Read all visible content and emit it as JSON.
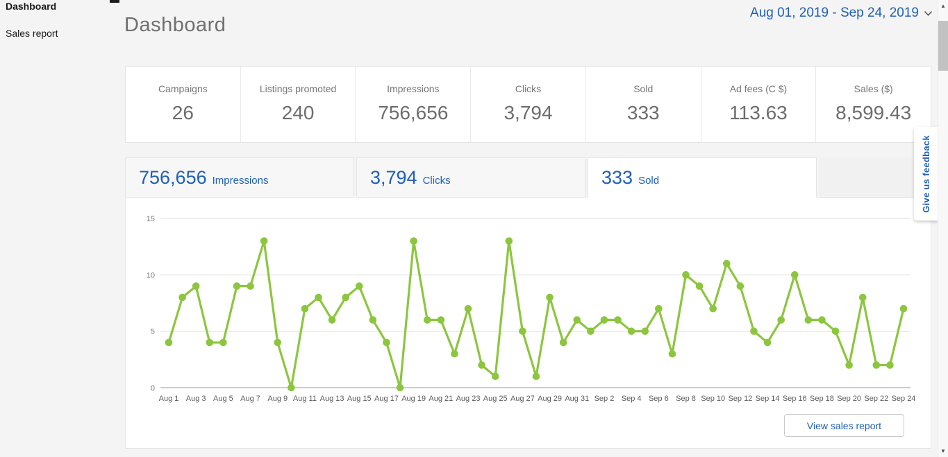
{
  "sidebar": {
    "items": [
      {
        "label": "Dashboard",
        "active": true
      },
      {
        "label": "Sales report",
        "active": false
      }
    ]
  },
  "header": {
    "title": "Dashboard",
    "date_range": "Aug 01, 2019 - Sep 24, 2019"
  },
  "stats": [
    {
      "label": "Campaigns",
      "value": "26"
    },
    {
      "label": "Listings promoted",
      "value": "240"
    },
    {
      "label": "Impressions",
      "value": "756,656"
    },
    {
      "label": "Clicks",
      "value": "3,794"
    },
    {
      "label": "Sold",
      "value": "333"
    },
    {
      "label": "Ad fees (C $)",
      "value": "113.63"
    },
    {
      "label": "Sales ($)",
      "value": "8,599.43"
    }
  ],
  "tabs": [
    {
      "value": "756,656",
      "label": "Impressions",
      "active": false
    },
    {
      "value": "3,794",
      "label": "Clicks",
      "active": false
    },
    {
      "value": "333",
      "label": "Sold",
      "active": true
    }
  ],
  "chart_data": {
    "type": "line",
    "title": "",
    "series_name": "Sold",
    "categories": [
      "Aug 1",
      "Aug 2",
      "Aug 3",
      "Aug 4",
      "Aug 5",
      "Aug 6",
      "Aug 7",
      "Aug 8",
      "Aug 9",
      "Aug 10",
      "Aug 11",
      "Aug 12",
      "Aug 13",
      "Aug 14",
      "Aug 15",
      "Aug 16",
      "Aug 17",
      "Aug 18",
      "Aug 19",
      "Aug 20",
      "Aug 21",
      "Aug 22",
      "Aug 23",
      "Aug 24",
      "Aug 25",
      "Aug 26",
      "Aug 27",
      "Aug 28",
      "Aug 29",
      "Aug 30",
      "Aug 31",
      "Sep 1",
      "Sep 2",
      "Sep 3",
      "Sep 4",
      "Sep 5",
      "Sep 6",
      "Sep 7",
      "Sep 8",
      "Sep 9",
      "Sep 10",
      "Sep 11",
      "Sep 12",
      "Sep 13",
      "Sep 14",
      "Sep 15",
      "Sep 16",
      "Sep 17",
      "Sep 18",
      "Sep 19",
      "Sep 20",
      "Sep 21",
      "Sep 22",
      "Sep 23",
      "Sep 24"
    ],
    "values": [
      4,
      8,
      9,
      4,
      4,
      9,
      9,
      13,
      4,
      0,
      7,
      8,
      6,
      8,
      9,
      6,
      4,
      0,
      13,
      6,
      6,
      3,
      7,
      2,
      1,
      13,
      5,
      1,
      8,
      4,
      6,
      5,
      6,
      6,
      5,
      5,
      7,
      3,
      10,
      9,
      7,
      11,
      9,
      5,
      4,
      6,
      10,
      6,
      6,
      5,
      2,
      8,
      2,
      2,
      7
    ],
    "x_tick_labels": [
      "Aug 1",
      "Aug 3",
      "Aug 5",
      "Aug 7",
      "Aug 9",
      "Aug 11",
      "Aug 13",
      "Aug 15",
      "Aug 17",
      "Aug 19",
      "Aug 21",
      "Aug 23",
      "Aug 25",
      "Aug 27",
      "Aug 29",
      "Aug 31",
      "Sep 2",
      "Sep 4",
      "Sep 6",
      "Sep 8",
      "Sep 10",
      "Sep 12",
      "Sep 14",
      "Sep 16",
      "Sep 18",
      "Sep 20",
      "Sep 22",
      "Sep 24"
    ],
    "ylim": [
      0,
      15
    ],
    "yticks": [
      0,
      5,
      10,
      15
    ],
    "grid": true,
    "legend": "none",
    "line_color": "#8CC63F"
  },
  "actions": {
    "view_sales_report": "View sales report",
    "give_feedback": "Give us feedback"
  },
  "colors": {
    "accent_blue": "#1E5FB8",
    "chart_green": "#8CC63F",
    "background": "#F4F4F4",
    "text_gray": "#767676"
  }
}
